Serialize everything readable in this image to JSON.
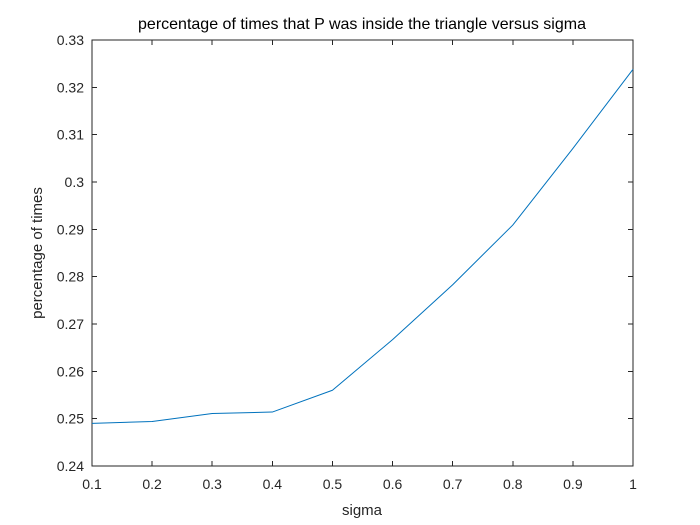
{
  "chart_data": {
    "type": "line",
    "title": "percentage of times that P was inside the triangle versus sigma",
    "xlabel": "sigma",
    "ylabel": "percentage of times",
    "xlim": [
      0.1,
      1
    ],
    "ylim": [
      0.24,
      0.33
    ],
    "xticks": [
      0.1,
      0.2,
      0.3,
      0.4,
      0.5,
      0.6,
      0.7,
      0.8,
      0.9,
      1
    ],
    "xtick_labels": [
      "0.1",
      "0.2",
      "0.3",
      "0.4",
      "0.5",
      "0.6",
      "0.7",
      "0.8",
      "0.9",
      "1"
    ],
    "yticks": [
      0.24,
      0.25,
      0.26,
      0.27,
      0.28,
      0.29,
      0.3,
      0.31,
      0.32,
      0.33
    ],
    "ytick_labels": [
      "0.24",
      "0.25",
      "0.26",
      "0.27",
      "0.28",
      "0.29",
      "0.3",
      "0.31",
      "0.32",
      "0.33"
    ],
    "grid": false,
    "legend": "none",
    "series": [
      {
        "color": "#0072BD",
        "x": [
          0.1,
          0.2,
          0.3,
          0.4,
          0.5,
          0.6,
          0.7,
          0.8,
          0.9,
          1.0
        ],
        "y": [
          0.249,
          0.2494,
          0.2511,
          0.2514,
          0.256,
          0.2667,
          0.2783,
          0.2909,
          0.3071,
          0.3238
        ]
      }
    ]
  },
  "colors": {
    "axes": "#262626",
    "line": "#0072BD",
    "background": "#ffffff"
  }
}
